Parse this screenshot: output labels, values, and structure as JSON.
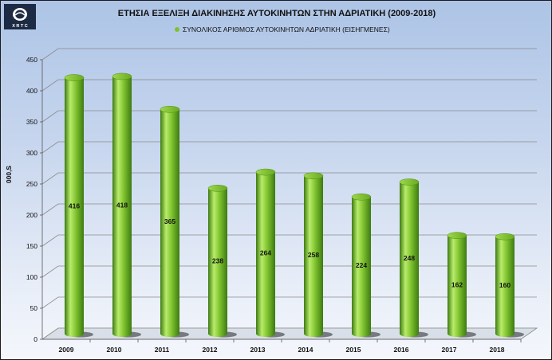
{
  "logo": {
    "text": "X R T C"
  },
  "chart_data": {
    "type": "bar",
    "title": "ΕΤΗΣΙΑ ΕΞΕΛΙΞΗ ΔΙΑΚΙΝΗΣΗΣ ΑΥΤΟΚΙΝΗΤΩΝ ΣΤΗΝ ΑΔΡΙΑΤΙΚΗ (2009-2018)",
    "categories": [
      "2009",
      "2010",
      "2011",
      "2012",
      "2013",
      "2014",
      "2015",
      "2016",
      "2017",
      "2018"
    ],
    "series": [
      {
        "name": "ΣΥΝΟΛΙΚΟΣ ΑΡΙΘΜΟΣ ΑΥΤΟΚΙΝΗΤΩΝ ΑΔΡΙΑΤΙΚΗ (ΕΙΣΗΓΜΕΝΕΣ)",
        "values": [
          416,
          418,
          365,
          238,
          264,
          258,
          224,
          248,
          162,
          160
        ]
      }
    ],
    "ylabel": "000,S",
    "xlabel": "",
    "ylim": [
      0,
      450
    ],
    "yticks": [
      0,
      50,
      100,
      150,
      200,
      250,
      300,
      350,
      400,
      450
    ],
    "grid": true,
    "legend": "top-center",
    "colors": {
      "bar": "#7ec22e",
      "bar_dark": "#3d7a12",
      "bar_light": "#b8ec6a",
      "grid": "#8a8a8a"
    }
  }
}
